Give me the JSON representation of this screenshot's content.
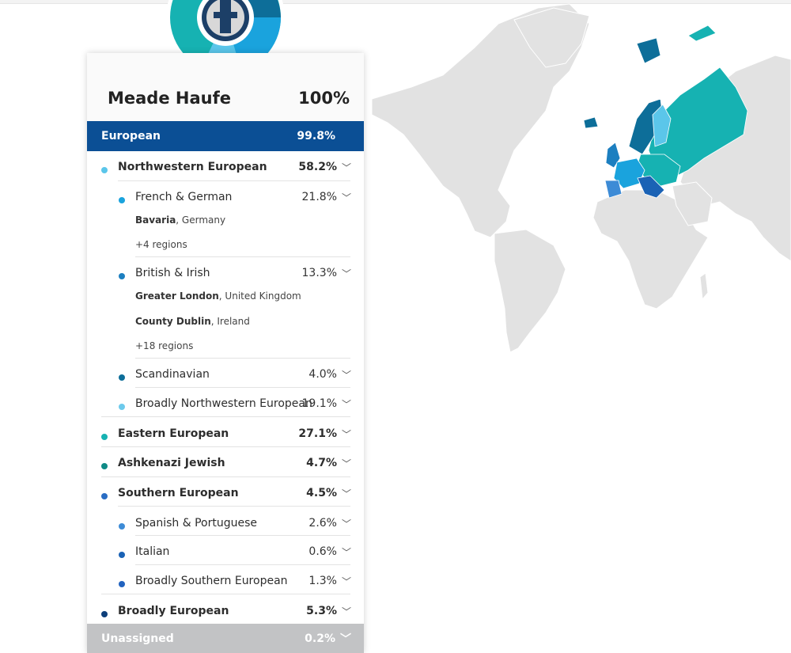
{
  "profile": {
    "name": "Meade Haufe",
    "total": "100%"
  },
  "european": {
    "label": "European",
    "value": "99.8%"
  },
  "nw": {
    "label": "Northwestern European",
    "value": "58.2%"
  },
  "french_german": {
    "label": "French & German",
    "value": "21.8%",
    "region1_bold": "Bavaria",
    "region1_rest": ", Germany",
    "more": "+4 regions"
  },
  "british_irish": {
    "label": "British & Irish",
    "value": "13.3%",
    "region1_bold": "Greater London",
    "region1_rest": ", United Kingdom",
    "region2_bold": "County Dublin",
    "region2_rest": ", Ireland",
    "more": "+18 regions"
  },
  "scandinavian": {
    "label": "Scandinavian",
    "value": "4.0%"
  },
  "broad_nw": {
    "label": "Broadly Northwestern European",
    "value": "19.1%"
  },
  "eastern": {
    "label": "Eastern European",
    "value": "27.1%"
  },
  "ashkenazi": {
    "label": "Ashkenazi Jewish",
    "value": "4.7%"
  },
  "southern": {
    "label": "Southern European",
    "value": "4.5%"
  },
  "spanish": {
    "label": "Spanish & Portuguese",
    "value": "2.6%"
  },
  "italian": {
    "label": "Italian",
    "value": "0.6%"
  },
  "broad_south": {
    "label": "Broadly Southern European",
    "value": "1.3%"
  },
  "broad_eu": {
    "label": "Broadly European",
    "value": "5.3%"
  },
  "unassigned": {
    "label": "Unassigned",
    "value": "0.2%"
  },
  "colors": {
    "european_band": "#0b4f95",
    "northwestern": "#5bc6ea",
    "french_german": "#1aa3dd",
    "british_irish": "#1c7fc0",
    "scandinavian": "#0d6e99",
    "broad_nw": "#6dcaec",
    "eastern": "#16b2b2",
    "ashkenazi": "#0f8a86",
    "southern": "#2a6dc4",
    "spanish": "#3d8bd6",
    "italian": "#1a62b5",
    "broad_south": "#2263bf",
    "broad_eu": "#0d3f7a",
    "unassigned": "#c2c3c5",
    "land": "#e2e2e2"
  },
  "icons": {
    "chevron": "chevron-down-icon"
  }
}
